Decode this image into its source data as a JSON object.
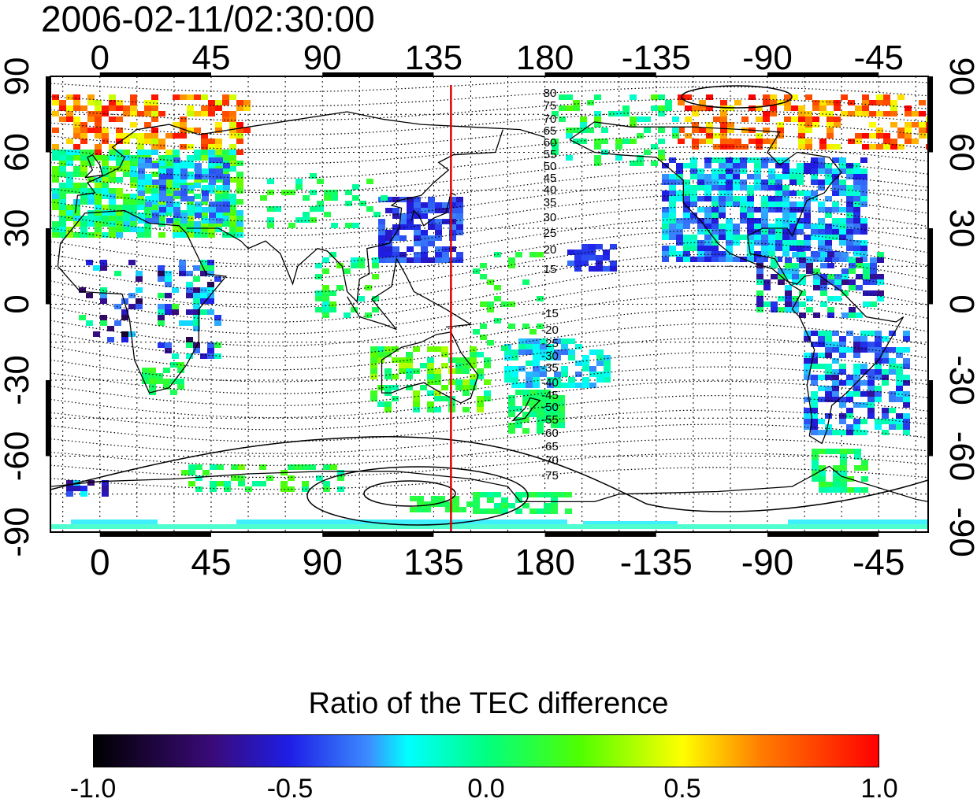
{
  "title": "2006-02-11/02:30:00",
  "map": {
    "lon_ticks": [
      "0",
      "45",
      "90",
      "135",
      "180",
      "-135",
      "-90",
      "-45"
    ],
    "lat_ticks": [
      "90",
      "60",
      "30",
      "0",
      "-30",
      "-60",
      "-90"
    ],
    "lon_range": [
      -20,
      335
    ],
    "lat_range": [
      -90,
      90
    ],
    "meridian_line_lon": 142,
    "meridian_line_color": "#e00000",
    "contour_labels_north": [
      "80",
      "75",
      "70",
      "65",
      "60",
      "55",
      "50",
      "45",
      "40",
      "35",
      "30",
      "25",
      "20",
      "15"
    ],
    "contour_labels_south": [
      "-15",
      "-20",
      "-25",
      "-30",
      "-35",
      "-40",
      "-45",
      "-50",
      "-55",
      "-60",
      "-65",
      "-70",
      "-75"
    ]
  },
  "colorbar": {
    "title": "Ratio of the TEC difference",
    "tick_labels": [
      "-1.0",
      "-0.5",
      "0.0",
      "0.5",
      "1.0"
    ],
    "range": [
      -1.0,
      1.0
    ]
  }
}
